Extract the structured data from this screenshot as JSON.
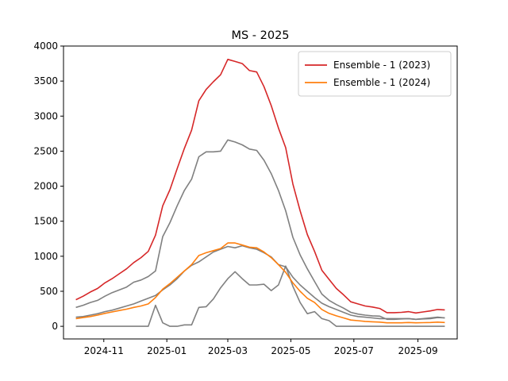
{
  "chart_data": {
    "type": "line",
    "title": "MS - 2025",
    "xlabel": "",
    "ylabel": "",
    "x_ticks": [
      "2024-11",
      "2025-01",
      "2025-03",
      "2025-05",
      "2025-07",
      "2025-09"
    ],
    "y_ticks": [
      "0",
      "500",
      "1000",
      "1500",
      "2000",
      "2500",
      "3000",
      "3500",
      "4000"
    ],
    "ylim": [
      -180,
      4000
    ],
    "xlim": [
      "2024-09-23",
      "2025-10-09"
    ],
    "grid": false,
    "legend": "top-right",
    "x": [
      "2024-10-05",
      "2024-10-12",
      "2024-10-19",
      "2024-10-26",
      "2024-11-02",
      "2024-11-09",
      "2024-11-16",
      "2024-11-23",
      "2024-11-30",
      "2024-12-07",
      "2024-12-14",
      "2024-12-21",
      "2024-12-28",
      "2025-01-04",
      "2025-01-11",
      "2025-01-18",
      "2025-01-25",
      "2025-02-01",
      "2025-02-08",
      "2025-02-15",
      "2025-02-22",
      "2025-03-01",
      "2025-03-08",
      "2025-03-15",
      "2025-03-22",
      "2025-03-29",
      "2025-04-05",
      "2025-04-12",
      "2025-04-19",
      "2025-04-26",
      "2025-05-03",
      "2025-05-10",
      "2025-05-17",
      "2025-05-24",
      "2025-05-31",
      "2025-06-07",
      "2025-06-14",
      "2025-06-21",
      "2025-06-28",
      "2025-07-05",
      "2025-07-12",
      "2025-07-19",
      "2025-07-26",
      "2025-08-02",
      "2025-08-09",
      "2025-08-16",
      "2025-08-23",
      "2025-08-30",
      "2025-09-06",
      "2025-09-13",
      "2025-09-20",
      "2025-09-27"
    ],
    "series": [
      {
        "name": "Ensemble - 1 (2023)",
        "color": "#d62728",
        "values": [
          380,
          430,
          490,
          540,
          620,
          680,
          750,
          820,
          910,
          980,
          1070,
          1300,
          1720,
          1950,
          2250,
          2540,
          2800,
          3220,
          3380,
          3490,
          3590,
          3810,
          3780,
          3750,
          3650,
          3630,
          3420,
          3150,
          2830,
          2550,
          2030,
          1650,
          1310,
          1070,
          800,
          670,
          540,
          450,
          350,
          320,
          290,
          275,
          255,
          195,
          195,
          200,
          210,
          190,
          205,
          220,
          240,
          235
        ]
      },
      {
        "name": "Ensemble - 1 (2024)",
        "color": "#ff7f0e",
        "values": [
          110,
          125,
          140,
          160,
          185,
          205,
          225,
          245,
          270,
          290,
          320,
          410,
          530,
          610,
          700,
          790,
          880,
          1010,
          1050,
          1080,
          1110,
          1190,
          1190,
          1160,
          1130,
          1120,
          1060,
          980,
          880,
          770,
          620,
          500,
          400,
          340,
          240,
          185,
          150,
          120,
          90,
          80,
          70,
          65,
          60,
          50,
          50,
          50,
          55,
          50,
          52,
          55,
          60,
          55
        ]
      },
      {
        "name": "",
        "color": "#808080",
        "values": [
          270,
          300,
          340,
          370,
          430,
          480,
          520,
          560,
          630,
          660,
          710,
          790,
          1280,
          1480,
          1720,
          1940,
          2100,
          2420,
          2490,
          2490,
          2500,
          2660,
          2630,
          2590,
          2530,
          2510,
          2370,
          2180,
          1940,
          1650,
          1270,
          1020,
          820,
          640,
          460,
          370,
          310,
          260,
          200,
          175,
          160,
          150,
          145,
          100,
          100,
          105,
          110,
          100,
          105,
          110,
          125,
          120
        ]
      },
      {
        "name": "",
        "color": "#808080",
        "values": [
          130,
          140,
          160,
          180,
          210,
          230,
          260,
          290,
          320,
          360,
          400,
          440,
          520,
          590,
          680,
          790,
          870,
          920,
          990,
          1060,
          1100,
          1140,
          1120,
          1150,
          1120,
          1100,
          1050,
          990,
          880,
          850,
          700,
          590,
          500,
          410,
          330,
          280,
          240,
          200,
          160,
          140,
          130,
          120,
          110,
          110,
          110,
          110,
          110,
          100,
          110,
          120,
          130,
          120
        ]
      },
      {
        "name": "",
        "color": "#808080",
        "values": [
          0,
          0,
          0,
          0,
          0,
          0,
          0,
          0,
          0,
          0,
          0,
          300,
          50,
          0,
          0,
          20,
          20,
          270,
          280,
          390,
          550,
          680,
          780,
          680,
          590,
          590,
          600,
          510,
          590,
          860,
          570,
          340,
          180,
          210,
          110,
          80,
          0,
          0,
          0,
          0,
          0,
          0,
          0,
          0,
          0,
          0,
          0,
          0,
          0,
          0,
          0,
          0
        ]
      }
    ]
  }
}
